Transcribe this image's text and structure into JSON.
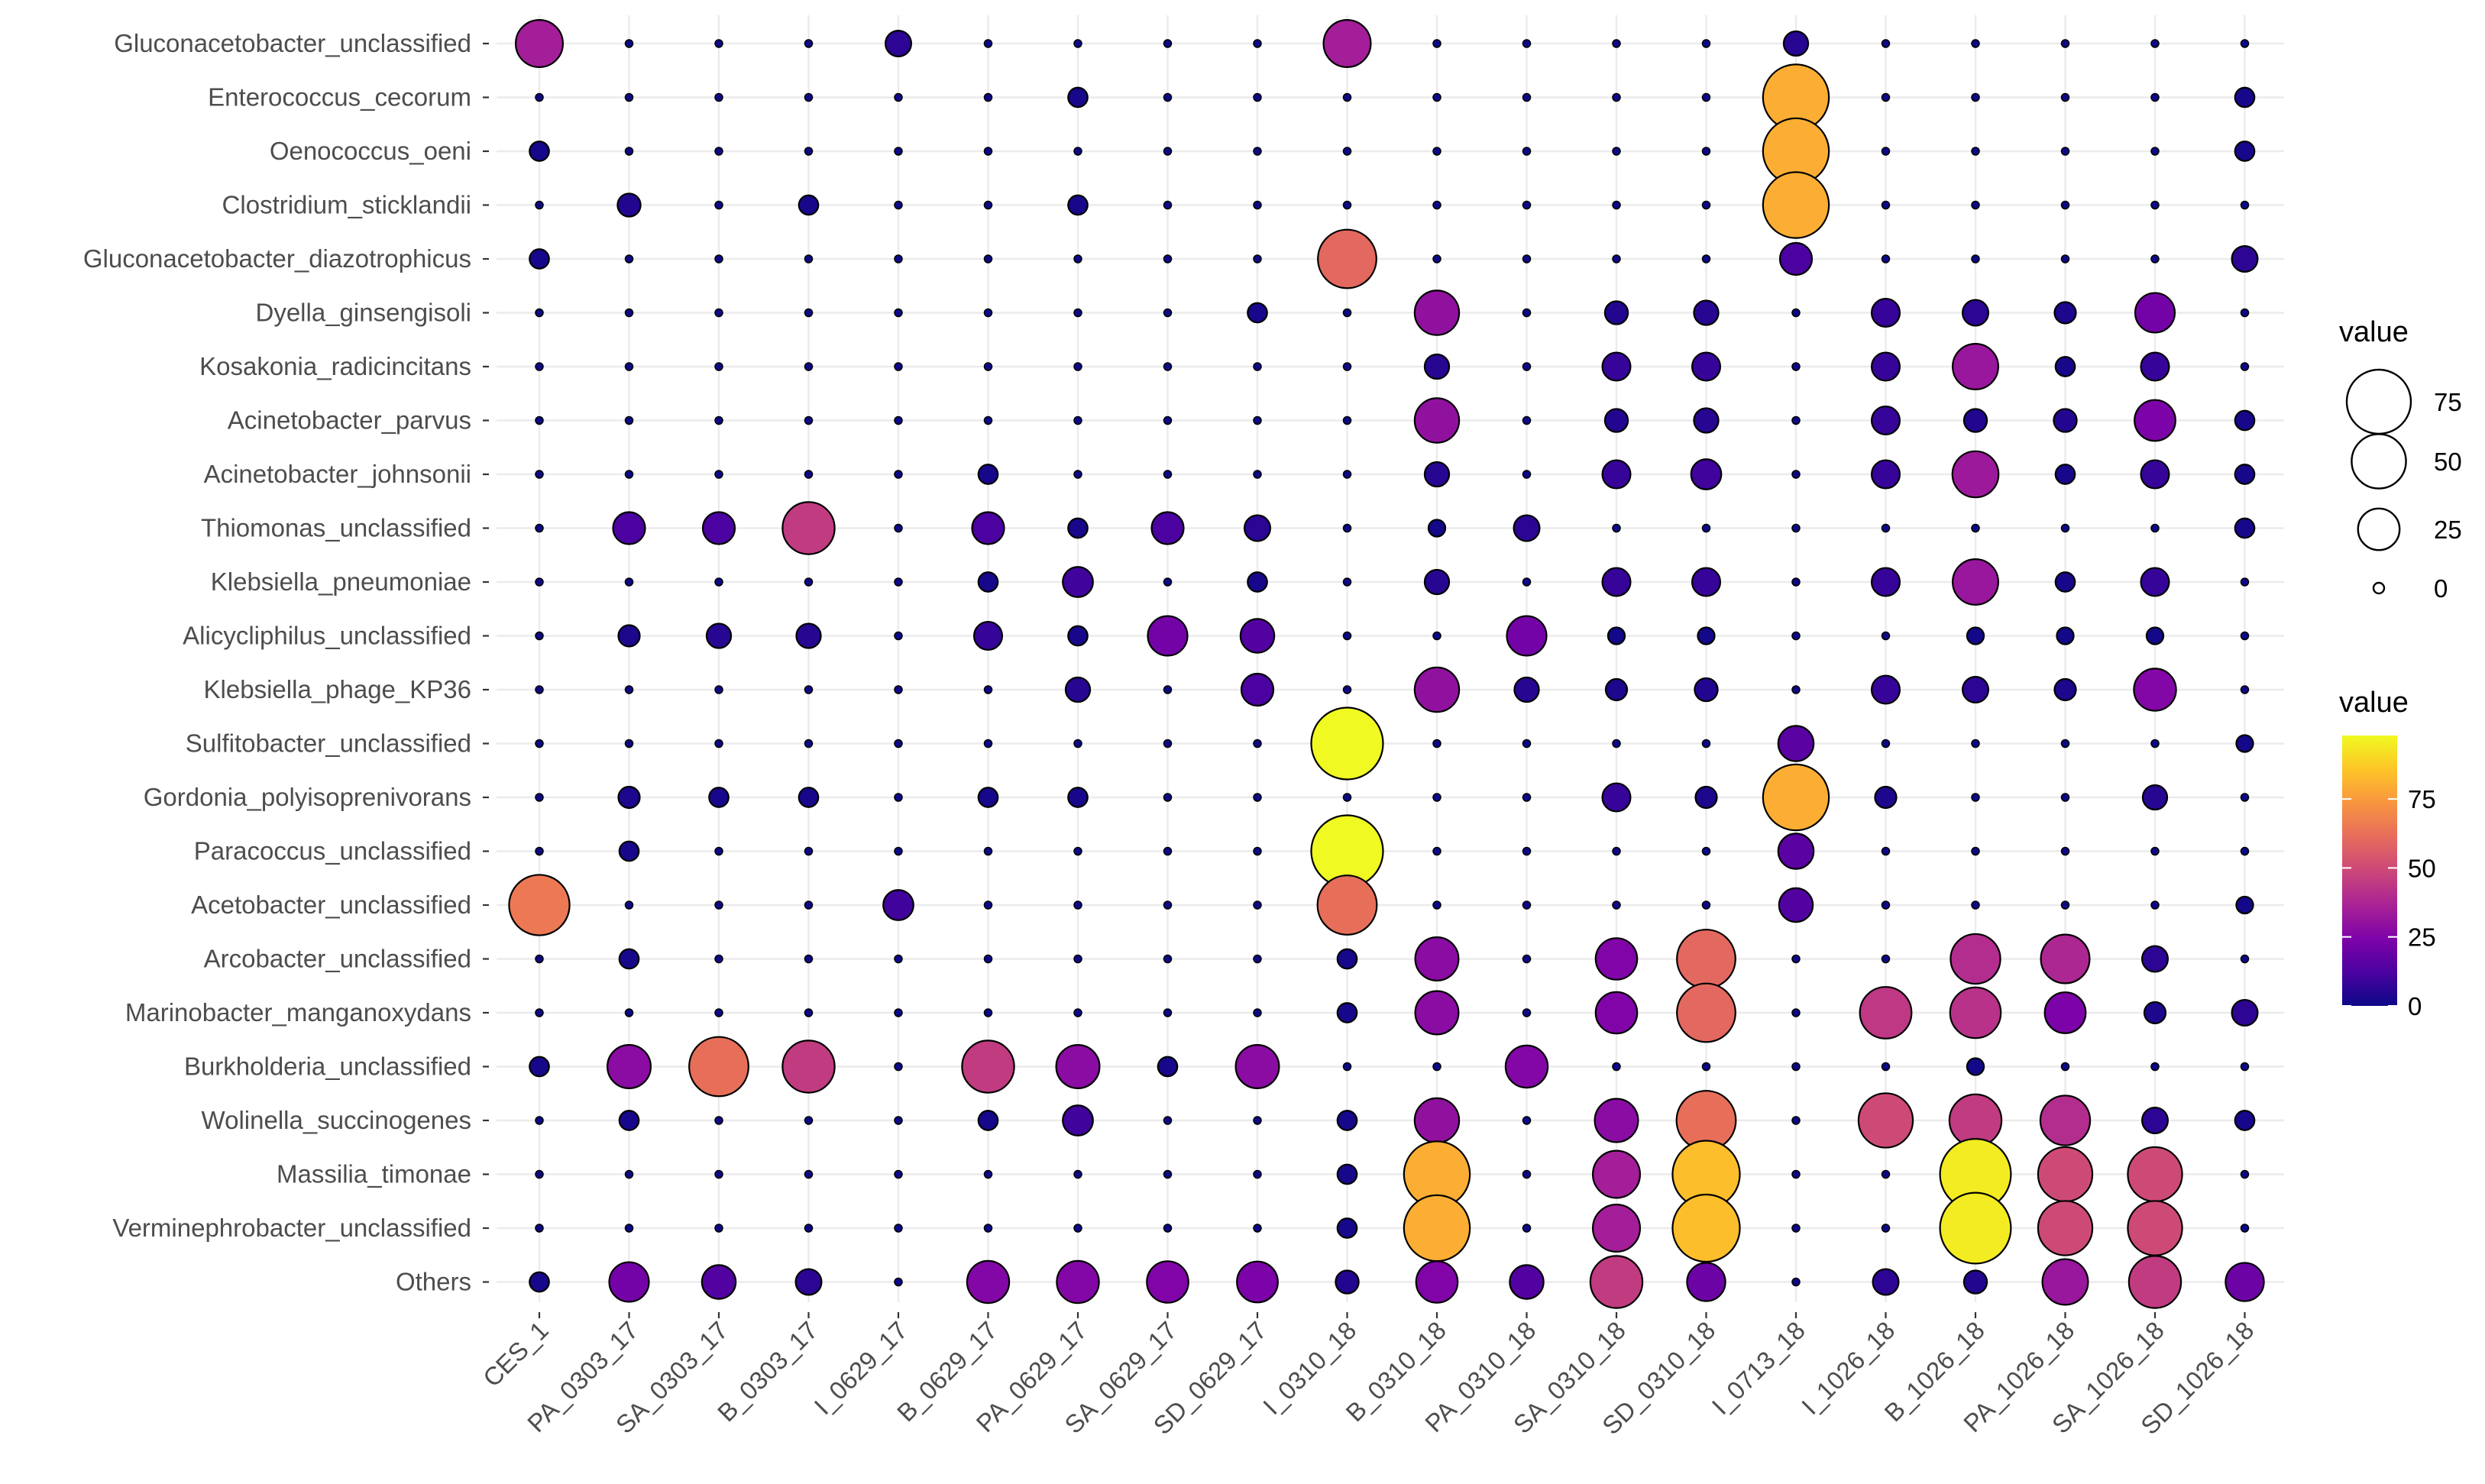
{
  "chart_data": {
    "type": "bubble",
    "categories_x": [
      "CES_1",
      "PA_0303_17",
      "SA_0303_17",
      "B_0303_17",
      "I_0629_17",
      "B_0629_17",
      "PA_0629_17",
      "SA_0629_17",
      "SD_0629_17",
      "I_0310_18",
      "B_0310_18",
      "PA_0310_18",
      "SA_0310_18",
      "SD_0310_18",
      "I_0713_18",
      "I_1026_18",
      "B_1026_18",
      "PA_1026_18",
      "SA_1026_18",
      "SD_1026_18"
    ],
    "categories_y": [
      "Gluconacetobacter_unclassified",
      "Enterococcus_cecorum",
      "Oenococcus_oeni",
      "Clostridium_sticklandii",
      "Gluconacetobacter_diazotrophicus",
      "Dyella_ginsengisoli",
      "Kosakonia_radicincitans",
      "Acinetobacter_parvus",
      "Acinetobacter_johnsonii",
      "Thiomonas_unclassified",
      "Klebsiella_pneumoniae",
      "Alicycliphilus_unclassified",
      "Klebsiella_phage_KP36",
      "Sulfitobacter_unclassified",
      "Gordonia_polyisoprenivorans",
      "Paracoccus_unclassified",
      "Acetobacter_unclassified",
      "Arcobacter_unclassified",
      "Marinobacter_manganoxydans",
      "Burkholderia_unclassified",
      "Wolinella_succinogenes",
      "Massilia_timonae",
      "Verminephrobacter_unclassified",
      "Others"
    ],
    "values": [
      [
        35,
        0,
        0,
        0,
        6,
        0,
        0,
        0,
        0,
        35,
        0,
        0,
        0,
        0,
        5,
        0,
        0,
        0,
        0,
        0
      ],
      [
        0,
        0,
        0,
        0,
        0,
        0,
        2,
        0,
        0,
        0,
        0,
        0,
        0,
        0,
        80,
        0,
        0,
        0,
        0,
        2
      ],
      [
        2,
        0,
        0,
        0,
        0,
        0,
        0,
        0,
        0,
        0,
        0,
        0,
        0,
        0,
        80,
        0,
        0,
        0,
        0,
        2
      ],
      [
        0,
        4,
        0,
        2,
        0,
        0,
        2,
        0,
        0,
        0,
        0,
        0,
        0,
        0,
        80,
        0,
        0,
        0,
        0,
        0
      ],
      [
        2,
        0,
        0,
        0,
        0,
        0,
        0,
        0,
        0,
        60,
        0,
        0,
        0,
        0,
        12,
        0,
        0,
        0,
        0,
        6
      ],
      [
        0,
        0,
        0,
        0,
        0,
        0,
        0,
        0,
        2,
        0,
        30,
        0,
        4,
        5,
        0,
        8,
        6,
        3,
        22,
        0
      ],
      [
        0,
        0,
        0,
        0,
        0,
        0,
        0,
        0,
        0,
        0,
        5,
        0,
        8,
        8,
        0,
        8,
        32,
        2,
        8,
        0
      ],
      [
        0,
        0,
        0,
        0,
        0,
        0,
        0,
        0,
        0,
        0,
        30,
        0,
        4,
        5,
        0,
        8,
        4,
        4,
        24,
        2
      ],
      [
        0,
        0,
        0,
        0,
        0,
        2,
        0,
        0,
        0,
        0,
        5,
        0,
        8,
        10,
        0,
        8,
        33,
        2,
        8,
        2
      ],
      [
        0,
        12,
        12,
        45,
        0,
        12,
        2,
        12,
        6,
        0,
        1,
        6,
        0,
        0,
        0,
        0,
        0,
        0,
        0,
        2
      ],
      [
        0,
        0,
        0,
        0,
        0,
        2,
        10,
        0,
        2,
        0,
        5,
        0,
        8,
        8,
        0,
        8,
        32,
        2,
        8,
        0
      ],
      [
        0,
        3,
        5,
        5,
        0,
        8,
        2,
        22,
        14,
        0,
        0,
        22,
        1,
        1,
        0,
        0,
        1,
        1,
        1,
        0
      ],
      [
        0,
        0,
        0,
        0,
        0,
        0,
        5,
        0,
        12,
        0,
        30,
        5,
        3,
        4,
        0,
        8,
        6,
        3,
        26,
        0
      ],
      [
        0,
        0,
        0,
        0,
        0,
        0,
        0,
        0,
        0,
        98,
        0,
        0,
        0,
        0,
        16,
        0,
        0,
        0,
        0,
        1
      ],
      [
        0,
        3,
        2,
        2,
        0,
        2,
        2,
        0,
        0,
        0,
        0,
        0,
        8,
        3,
        80,
        3,
        0,
        0,
        5,
        0
      ],
      [
        0,
        2,
        0,
        0,
        0,
        0,
        0,
        0,
        0,
        98,
        0,
        0,
        0,
        0,
        16,
        0,
        0,
        0,
        0,
        0
      ],
      [
        65,
        0,
        0,
        0,
        10,
        0,
        0,
        0,
        0,
        62,
        0,
        0,
        0,
        0,
        14,
        0,
        0,
        0,
        0,
        1
      ],
      [
        0,
        2,
        0,
        0,
        0,
        0,
        0,
        0,
        0,
        2,
        28,
        0,
        25,
        60,
        0,
        0,
        40,
        38,
        6,
        0
      ],
      [
        0,
        0,
        0,
        0,
        0,
        0,
        0,
        0,
        0,
        2,
        28,
        0,
        25,
        60,
        0,
        44,
        42,
        24,
        3,
        6
      ],
      [
        2,
        28,
        62,
        45,
        0,
        45,
        28,
        2,
        28,
        0,
        0,
        26,
        0,
        0,
        0,
        0,
        1,
        0,
        0,
        0
      ],
      [
        0,
        2,
        0,
        0,
        0,
        2,
        10,
        0,
        0,
        2,
        30,
        0,
        28,
        62,
        0,
        50,
        45,
        40,
        6,
        2
      ],
      [
        0,
        0,
        0,
        0,
        0,
        0,
        0,
        0,
        0,
        2,
        80,
        0,
        35,
        84,
        0,
        0,
        95,
        50,
        50,
        0
      ],
      [
        0,
        0,
        0,
        0,
        0,
        0,
        0,
        0,
        0,
        2,
        80,
        0,
        35,
        84,
        0,
        0,
        95,
        50,
        50,
        0
      ],
      [
        2,
        22,
        14,
        6,
        0,
        26,
        26,
        25,
        24,
        4,
        25,
        14,
        45,
        20,
        0,
        6,
        4,
        32,
        45,
        20
      ]
    ],
    "size_legend": {
      "title": "value",
      "breaks": [
        75,
        50,
        25,
        0
      ],
      "labels": [
        "75",
        "50",
        "25",
        "0"
      ]
    },
    "color_legend": {
      "title": "value",
      "breaks": [
        75,
        50,
        25,
        0
      ],
      "labels": [
        "75",
        "50",
        "25",
        "0"
      ],
      "scale": "plasma",
      "range": [
        0,
        98
      ]
    },
    "grid": true
  }
}
